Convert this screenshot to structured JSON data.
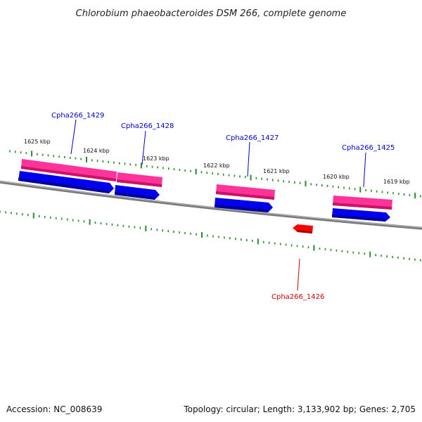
{
  "title": "Chlorobium phaeobacteroides DSM 266, complete genome",
  "footer": {
    "accession": "Accession: NC_008639",
    "summary": "Topology: circular; Length: 3,133,902 bp; Genes: 2,705"
  },
  "ticks": [
    {
      "label": "1625 kbp",
      "kbp": 1625
    },
    {
      "label": "1624 kbp",
      "kbp": 1624
    },
    {
      "label": "1623 kbp",
      "kbp": 1623
    },
    {
      "label": "1622 kbp",
      "kbp": 1622
    },
    {
      "label": "1621 kbp",
      "kbp": 1621
    },
    {
      "label": "1620 kbp",
      "kbp": 1620
    },
    {
      "label": "1619 kbp",
      "kbp": 1619
    }
  ],
  "genes": [
    {
      "id": "Cpha266_1429",
      "strand": "+",
      "label_color": "#0000cc"
    },
    {
      "id": "Cpha266_1428",
      "strand": "+",
      "label_color": "#0000cc"
    },
    {
      "id": "Cpha266_1427",
      "strand": "+",
      "label_color": "#0000cc"
    },
    {
      "id": "Cpha266_1425",
      "strand": "+",
      "label_color": "#0000cc"
    },
    {
      "id": "Cpha266_1426",
      "strand": "-",
      "label_color": "#cc0000"
    }
  ],
  "colors": {
    "cds": "#ff3399",
    "gene": "#0000ee",
    "minus_gene": "#ff0000",
    "tick": "#2a8a2a",
    "backbone": "#777777"
  }
}
